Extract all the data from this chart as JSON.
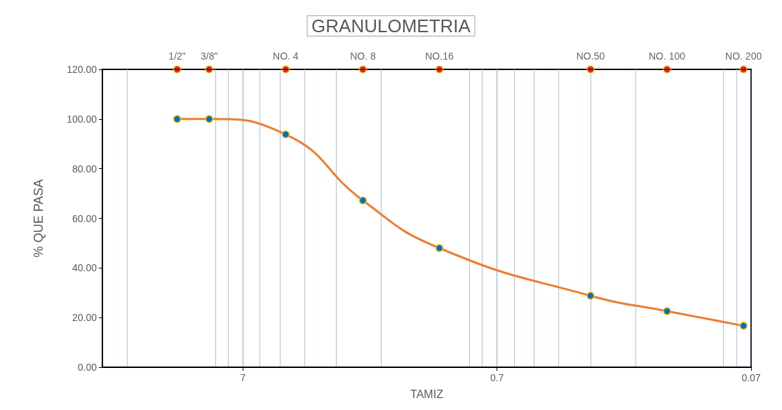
{
  "chart_data": {
    "type": "line",
    "title": "GRANULOMETRIA",
    "xlabel": "TAMIZ",
    "ylabel": "% QUE PASA",
    "log": "x",
    "xlim": [
      25,
      0.07
    ],
    "xticks": [
      7,
      0.7,
      0.07
    ],
    "ylim": [
      0,
      120
    ],
    "yticks": [
      {
        "value": 0,
        "label": "0.00"
      },
      {
        "value": 20,
        "label": "20.00"
      },
      {
        "value": 40,
        "label": "40.00"
      },
      {
        "value": 60,
        "label": "60.00"
      },
      {
        "value": 80,
        "label": "80.00"
      },
      {
        "value": 100,
        "label": "100.00"
      },
      {
        "value": 120,
        "label": "120.00"
      }
    ],
    "grid": "x",
    "marker": "circle",
    "series": [
      {
        "color": "#ed7d31",
        "colors": [
          "#0070c0",
          "#0070c0",
          "#0070c0",
          "#0070c0",
          "#0070c0",
          "#0070c0",
          "#0070c0",
          "#0070c0"
        ],
        "x": [
          12.7,
          9.5,
          4.75,
          2.36,
          1.18,
          0.3,
          0.15,
          0.075
        ],
        "values": [
          100,
          100,
          93.8,
          67.2,
          48.0,
          28.8,
          22.6,
          16.7
        ]
      },
      {
        "type": "scatter",
        "color": "#c00000",
        "x": [
          12.7,
          9.5,
          4.75,
          2.36,
          1.18,
          0.3,
          0.15,
          0.075
        ],
        "values": [
          120,
          120,
          120,
          120,
          120,
          120,
          120,
          120
        ]
      }
    ],
    "annotations": [
      {
        "text": "1/2\"",
        "x": 12.7,
        "y": 120
      },
      {
        "text": "3/8\"",
        "x": 9.5,
        "y": 120
      },
      {
        "text": "NO. 4",
        "x": 4.75,
        "y": 120
      },
      {
        "text": "NO. 8",
        "x": 2.36,
        "y": 120
      },
      {
        "text": "NO.16",
        "x": 1.18,
        "y": 120
      },
      {
        "text": "NO.50",
        "x": 0.3,
        "y": 120
      },
      {
        "text": "NO. 100",
        "x": 0.15,
        "y": 120
      },
      {
        "text": "NO. 200",
        "x": 0.075,
        "y": 120
      }
    ]
  }
}
